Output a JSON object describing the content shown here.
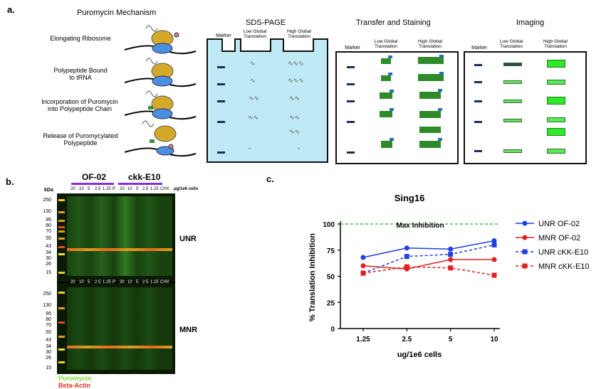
{
  "panel_a": {
    "label": "a.",
    "mechanism_title": "Puromycin Mechanism",
    "steps": [
      "Elongating Ribosome",
      "Polypeptide Bound\nto tRNA",
      "Incorporation of Puromycin\ninto Polypeptide Chain",
      "Release of Puromycylated\nPolypeptide"
    ],
    "sds_title": "SDS-PAGE",
    "transfer_title": "Transfer and Staining",
    "imaging_title": "Imaging",
    "marker": "Marker",
    "low": "Low Global\nTranslation",
    "high": "High Global\nTranslation"
  },
  "panel_b": {
    "label": "b.",
    "group1": "OF-02",
    "group2": "ckk-E10",
    "group_color": "#8a2be2",
    "kda_label": "kDa",
    "units": "μg/1e6 cells",
    "lanes_top": [
      "20",
      "10",
      "5",
      "2.5",
      "1.25",
      "P",
      "20",
      "10",
      "5",
      "2.5",
      "1.25",
      "CHX"
    ],
    "lanes_mid": [
      "20",
      "10",
      "5",
      "2.5",
      "1.25",
      "P",
      "20",
      "10",
      "5",
      "2.5",
      "1.25",
      "CHX"
    ],
    "kda_top": [
      "250",
      "130",
      "95",
      "80",
      "70",
      "55",
      "43",
      "34",
      "30",
      "26",
      "15"
    ],
    "kda_bottom": [
      "250",
      "130",
      "95",
      "80",
      "70",
      "55",
      "43",
      "34",
      "30",
      "26",
      "15"
    ],
    "blot_top_label": "UNR",
    "blot_bottom_label": "MNR",
    "legend_puromycin": "Puromycin",
    "legend_actin": "Beta-Actin",
    "puromycin_color": "#7fdc3a",
    "actin_color": "#e0301e"
  },
  "panel_c": {
    "label": "c.",
    "chart_data": {
      "type": "line",
      "title": "Sing16",
      "xlabel": "ug/1e6 cells",
      "ylabel": "% Translation Inhibition",
      "categories": [
        "1.25",
        "2.5",
        "5",
        "10"
      ],
      "ylim": [
        0,
        100
      ],
      "yticks": [
        "0",
        "25",
        "50",
        "75",
        "100"
      ],
      "reference_line": {
        "value": 100,
        "label": "Max Inhibition",
        "color": "#22b022"
      },
      "series": [
        {
          "name": "UNR OF-02",
          "values": [
            68,
            77,
            76,
            84
          ],
          "color": "#1f3fe0",
          "marker": "circle",
          "dashed": false
        },
        {
          "name": "MNR OF-02",
          "values": [
            60,
            57,
            66,
            66
          ],
          "color": "#e02020",
          "marker": "circle",
          "dashed": false
        },
        {
          "name": "UNR cKK-E10",
          "values": [
            53,
            69,
            71,
            80
          ],
          "color": "#1f3fe0",
          "marker": "square",
          "dashed": true
        },
        {
          "name": "MNR cKK-E10",
          "values": [
            53,
            59,
            58,
            51
          ],
          "color": "#e02020",
          "marker": "square",
          "dashed": true
        }
      ],
      "legend_position": "right"
    }
  }
}
